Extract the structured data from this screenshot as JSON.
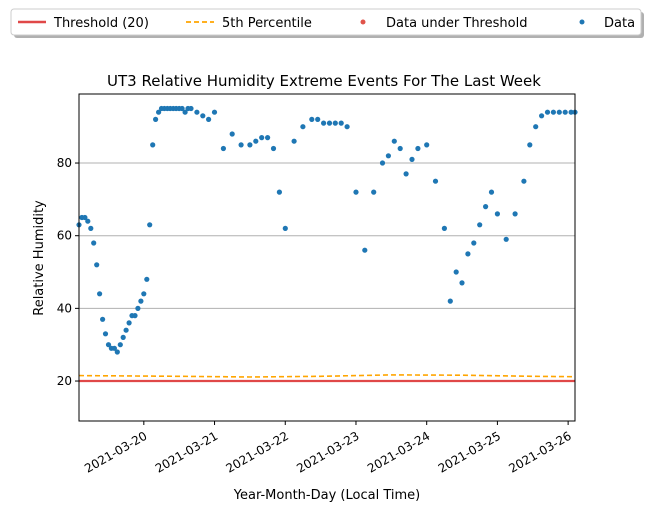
{
  "chart_data": {
    "type": "scatter",
    "title": "UT3 Relative Humidity Extreme Events For The Last Week",
    "xlabel": "Year-Month-Day (Local Time)",
    "ylabel": "Relative Humidity",
    "xlim": [
      "2021-03-19T02:00",
      "2021-03-26T02:20"
    ],
    "ylim": [
      9,
      99
    ],
    "yticks": [
      20,
      40,
      60,
      80
    ],
    "xticks": [
      "2021-03-20",
      "2021-03-21",
      "2021-03-22",
      "2021-03-23",
      "2021-03-24",
      "2021-03-25",
      "2021-03-26"
    ],
    "grid": "horizontal",
    "legend_position": "top, above plot",
    "legend": [
      "Threshold (20)",
      "5th Percentile",
      "Data under Threshold",
      "Data"
    ],
    "colors": {
      "threshold": "#e04848",
      "percentile": "#ffa500",
      "under_threshold": "#e0534a",
      "data": "#1f77b4"
    },
    "threshold": 20,
    "percentile_series": {
      "name": "5th Percentile",
      "x": [
        "2021-03-19T02:00",
        "2021-03-20T12:00",
        "2021-03-21T12:00",
        "2021-03-22T12:00",
        "2021-03-23T12:00",
        "2021-03-24T12:00",
        "2021-03-25T12:00",
        "2021-03-26T02:20"
      ],
      "y": [
        21.5,
        21.3,
        21.1,
        21.3,
        21.7,
        21.6,
        21.3,
        21.2
      ]
    },
    "series": [
      {
        "name": "Data",
        "x": [
          "2021-03-19T02:00",
          "2021-03-19T03:00",
          "2021-03-19T04:00",
          "2021-03-19T05:00",
          "2021-03-19T06:00",
          "2021-03-19T07:00",
          "2021-03-19T08:00",
          "2021-03-19T09:00",
          "2021-03-19T10:00",
          "2021-03-19T11:00",
          "2021-03-19T12:00",
          "2021-03-19T13:00",
          "2021-03-19T14:00",
          "2021-03-19T15:00",
          "2021-03-19T16:00",
          "2021-03-19T17:00",
          "2021-03-19T18:00",
          "2021-03-19T19:00",
          "2021-03-19T20:00",
          "2021-03-19T21:00",
          "2021-03-19T22:00",
          "2021-03-19T23:00",
          "2021-03-20T00:00",
          "2021-03-20T01:00",
          "2021-03-20T02:00",
          "2021-03-20T03:00",
          "2021-03-20T04:00",
          "2021-03-20T05:00",
          "2021-03-20T06:00",
          "2021-03-20T07:00",
          "2021-03-20T08:00",
          "2021-03-20T09:00",
          "2021-03-20T10:00",
          "2021-03-20T11:00",
          "2021-03-20T12:00",
          "2021-03-20T13:00",
          "2021-03-20T14:00",
          "2021-03-20T15:00",
          "2021-03-20T16:00",
          "2021-03-20T18:00",
          "2021-03-20T20:00",
          "2021-03-20T22:00",
          "2021-03-21T00:00",
          "2021-03-21T03:00",
          "2021-03-21T06:00",
          "2021-03-21T09:00",
          "2021-03-21T12:00",
          "2021-03-21T14:00",
          "2021-03-21T16:00",
          "2021-03-21T18:00",
          "2021-03-21T20:00",
          "2021-03-21T22:00",
          "2021-03-22T00:00",
          "2021-03-22T03:00",
          "2021-03-22T06:00",
          "2021-03-22T09:00",
          "2021-03-22T11:00",
          "2021-03-22T13:00",
          "2021-03-22T15:00",
          "2021-03-22T17:00",
          "2021-03-22T19:00",
          "2021-03-22T21:00",
          "2021-03-23T00:00",
          "2021-03-23T03:00",
          "2021-03-23T06:00",
          "2021-03-23T09:00",
          "2021-03-23T11:00",
          "2021-03-23T13:00",
          "2021-03-23T15:00",
          "2021-03-23T17:00",
          "2021-03-23T19:00",
          "2021-03-23T21:00",
          "2021-03-24T00:00",
          "2021-03-24T03:00",
          "2021-03-24T06:00",
          "2021-03-24T08:00",
          "2021-03-24T10:00",
          "2021-03-24T12:00",
          "2021-03-24T14:00",
          "2021-03-24T16:00",
          "2021-03-24T18:00",
          "2021-03-24T20:00",
          "2021-03-24T22:00",
          "2021-03-25T00:00",
          "2021-03-25T03:00",
          "2021-03-25T06:00",
          "2021-03-25T09:00",
          "2021-03-25T11:00",
          "2021-03-25T13:00",
          "2021-03-25T15:00",
          "2021-03-25T17:00",
          "2021-03-25T19:00",
          "2021-03-25T21:00",
          "2021-03-25T23:00",
          "2021-03-26T01:00",
          "2021-03-26T02:20"
        ],
        "y": [
          63,
          65,
          65,
          64,
          62,
          58,
          52,
          44,
          37,
          33,
          30,
          29,
          29,
          28,
          30,
          32,
          34,
          36,
          38,
          38,
          40,
          42,
          44,
          48,
          63,
          85,
          92,
          94,
          95,
          95,
          95,
          95,
          95,
          95,
          95,
          95,
          94,
          95,
          95,
          94,
          93,
          92,
          94,
          84,
          88,
          85,
          85,
          86,
          87,
          87,
          84,
          72,
          62,
          86,
          90,
          92,
          92,
          91,
          91,
          91,
          91,
          90,
          72,
          56,
          72,
          80,
          82,
          86,
          84,
          77,
          81,
          84,
          85,
          75,
          62,
          42,
          50,
          47,
          55,
          58,
          63,
          68,
          72,
          66,
          59,
          66,
          75,
          85,
          90,
          93,
          94,
          94,
          94,
          94,
          94,
          94
        ]
      }
    ]
  }
}
